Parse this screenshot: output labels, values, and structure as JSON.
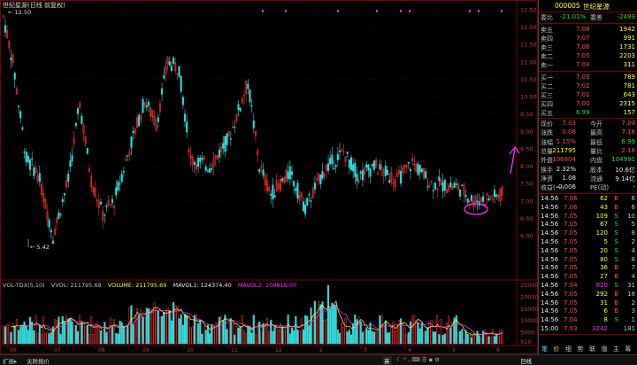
{
  "title": "世纪星源(日线 前复权)",
  "price_axis": [
    "12.50",
    "12.00",
    "11.50",
    "11.00",
    "10.50",
    "10.00",
    "9.50",
    "9.00",
    "8.50",
    "8.00",
    "7.50",
    "7.00",
    "6.50",
    "6.00"
  ],
  "high_label": "12.50",
  "low_label": "5.42",
  "volume_indicator": {
    "name": "VOL-TDX(5,10)",
    "vvol": "VVOL: 211795.69",
    "volume": "VOLUME: 211795.69",
    "mavol1": "MAVOL1: 124374.40",
    "mavol2": "MAVOL2: 109816.00",
    "axis": [
      "20000",
      "15000",
      "10000",
      "5000"
    ],
    "axis_top": "25000",
    "unit": "X10"
  },
  "date_axis": [
    "06",
    "07",
    "08",
    "09",
    "10",
    "11",
    "12",
    "2",
    "3",
    "4",
    "5",
    "6"
  ],
  "panel": {
    "code": "000005",
    "name": "世纪星源",
    "weibi_label": "委比",
    "weibi_value": "-21.01%",
    "weicha_label": "委差",
    "weicha_value": "-2493",
    "asks": [
      {
        "label": "卖五",
        "price": "7.08",
        "vol": "1942"
      },
      {
        "label": "卖四",
        "price": "7.07",
        "vol": "991"
      },
      {
        "label": "卖三",
        "price": "7.06",
        "vol": "1731"
      },
      {
        "label": "卖二",
        "price": "7.05",
        "vol": "2203"
      },
      {
        "label": "卖一",
        "price": "7.04",
        "vol": "311"
      }
    ],
    "bids": [
      {
        "label": "买一",
        "price": "7.03",
        "vol": "789"
      },
      {
        "label": "买二",
        "price": "7.02",
        "vol": "781"
      },
      {
        "label": "买三",
        "price": "7.01",
        "vol": "643"
      },
      {
        "label": "买四",
        "price": "7.00",
        "vol": "2315"
      },
      {
        "label": "买五",
        "price": "6.99",
        "vol": "157"
      }
    ],
    "stats": [
      {
        "l1": "现价",
        "v1": "7.03",
        "l2": "今开",
        "v2": "7.04"
      },
      {
        "l1": "涨跌",
        "v1": "0.08",
        "l2": "最高",
        "v2": "7.16"
      },
      {
        "l1": "涨幅",
        "v1": "1.15%",
        "l2": "最低",
        "v2": "6.99"
      },
      {
        "l1": "总量",
        "v1": "211795",
        "l2": "量比",
        "v2": "2.18"
      },
      {
        "l1": "外盘",
        "v1": "106804",
        "l2": "内盘",
        "v2": "104991"
      },
      {
        "l1": "换手",
        "v1": "2.32%",
        "l2": "股本",
        "v2": "10.6亿"
      },
      {
        "l1": "净资",
        "v1": "1.08",
        "l2": "流通",
        "v2": "9.14亿"
      },
      {
        "l1": "收益(一)",
        "v1": "-0.006",
        "l2": "PE(动)",
        "v2": "-"
      }
    ],
    "ticks": [
      {
        "t": "14:56",
        "p": "7.06",
        "v": "62",
        "f": "B",
        "n": "6"
      },
      {
        "t": "14:56",
        "p": "7.06",
        "v": "43",
        "f": "B",
        "n": "6"
      },
      {
        "t": "14:56",
        "p": "7.05",
        "v": "109",
        "f": "S",
        "n": "10"
      },
      {
        "t": "14:56",
        "p": "7.05",
        "v": "67",
        "f": "S",
        "n": "5"
      },
      {
        "t": "14:56",
        "p": "7.05",
        "v": "120",
        "f": "S",
        "n": "8"
      },
      {
        "t": "14:56",
        "p": "7.05",
        "v": "5",
        "f": "S",
        "n": "2"
      },
      {
        "t": "14:56",
        "p": "7.05",
        "v": "20",
        "f": "S",
        "n": "4"
      },
      {
        "t": "14:56",
        "p": "7.05",
        "v": "80",
        "f": "S",
        "n": "8"
      },
      {
        "t": "14:56",
        "p": "7.05",
        "v": "36",
        "f": "B",
        "n": "7"
      },
      {
        "t": "14:56",
        "p": "7.05",
        "v": "27",
        "f": "B",
        "n": "4"
      },
      {
        "t": "14:56",
        "p": "7.04",
        "v": "820",
        "f": "S",
        "n": "31"
      },
      {
        "t": "14:56",
        "p": "7.05",
        "v": "292",
        "f": "B",
        "n": "18"
      },
      {
        "t": "14:56",
        "p": "7.05",
        "v": "31",
        "f": "B",
        "n": "2"
      },
      {
        "t": "14:56",
        "p": "7.05",
        "v": "6",
        "f": "B",
        "n": "3"
      },
      {
        "t": "14:56",
        "p": "7.04",
        "v": "8",
        "f": "S",
        "n": "1"
      },
      {
        "t": "15:00",
        "p": "7.03",
        "v": "3242",
        "f": "",
        "n": "181"
      }
    ],
    "tabs": [
      "笔",
      "价",
      "细",
      "势",
      "联",
      "值",
      "主",
      "筹"
    ]
  },
  "bottom": {
    "left1": "扩展▸",
    "left2": "关联报价",
    "center1": "英",
    "mode": "日线"
  },
  "colors": {
    "up": "#ff3333",
    "down": "#33dddd",
    "ma1": "#ffffff",
    "ma2": "#ffff33",
    "ma3": "#ff33ff"
  }
}
